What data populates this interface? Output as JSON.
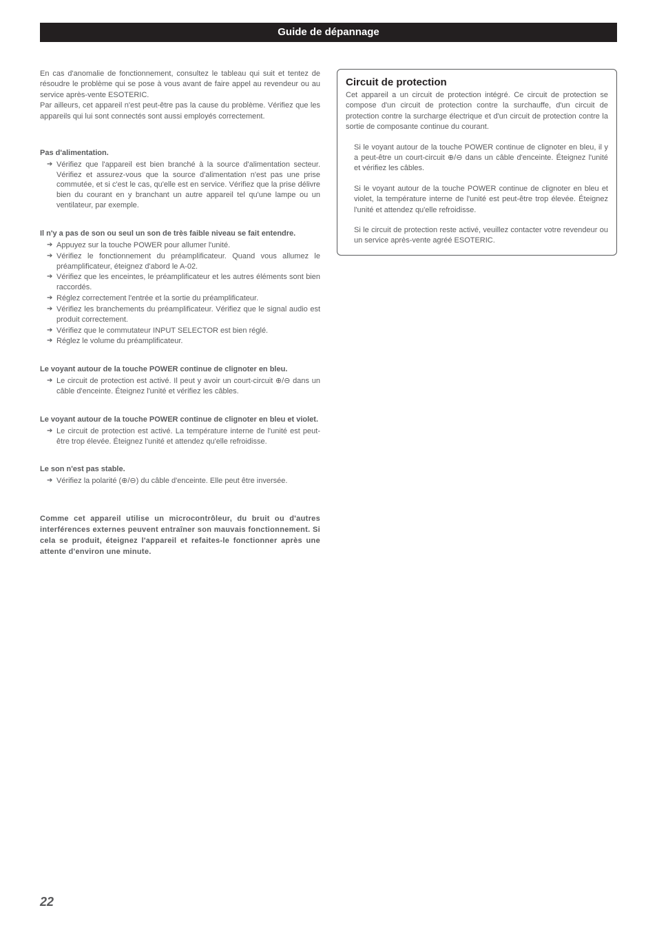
{
  "header": {
    "title": "Guide de dépannage"
  },
  "left": {
    "intro": "En cas d'anomalie de fonctionnement, consultez le tableau qui suit et tentez de résoudre le problème qui se pose à vous avant de faire appel au revendeur ou au service après-vente ESOTERIC.\nPar ailleurs, cet appareil n'est peut-être pas la cause du problème. Vérifiez que les appareils qui lui sont connectés sont aussi employés correctement.",
    "sections": [
      {
        "heading": "Pas d'alimentation.",
        "items": [
          "Vérifiez que l'appareil est bien branché à la source d'alimentation secteur. Vérifiez et assurez-vous que la source d'alimentation n'est pas une prise commutée, et si c'est le cas, qu'elle est en service. Vérifiez que la prise délivre bien du courant en y branchant un autre appareil tel qu'une lampe ou un ventilateur, par exemple."
        ]
      },
      {
        "heading": "Il n'y a pas de son ou seul un son de très faible niveau se fait entendre.",
        "items": [
          "Appuyez sur la touche POWER pour allumer l'unité.",
          "Vérifiez le fonctionnement du préamplificateur. Quand vous allumez le préamplificateur, éteignez d'abord le A-02.",
          "Vérifiez que les enceintes, le préamplificateur et les autres éléments sont bien raccordés.",
          "Réglez correctement l'entrée et la sortie du préamplificateur.",
          "Vérifiez les branchements du préamplificateur. Vérifiez que le signal audio est produit correctement.",
          "Vérifiez que le commutateur INPUT SELECTOR est bien réglé.",
          "Réglez le volume du préamplificateur."
        ]
      },
      {
        "heading": "Le voyant autour de la touche POWER continue de clignoter en bleu.",
        "items": [
          "Le circuit de protection est activé. Il peut y avoir un court-circuit ⊕/⊖ dans un câble d'enceinte. Éteignez l'unité et vérifiez les câbles."
        ]
      },
      {
        "heading": "Le voyant autour de la touche POWER continue de clignoter en bleu et violet.",
        "items": [
          "Le circuit de protection est activé. La température interne de l'unité est peut-être trop élevée. Éteignez l'unité et attendez qu'elle refroidisse."
        ]
      },
      {
        "heading": "Le son n'est pas stable.",
        "items": [
          "Vérifiez la polarité (⊕/⊖) du câble d'enceinte. Elle peut être inversée."
        ]
      }
    ],
    "bold_note": "Comme cet appareil utilise un microcontrôleur, du bruit ou d'autres interférences externes peuvent entraîner son mauvais fonctionnement. Si cela se produit, éteignez l'appareil et refaites-le fonctionner après une attente d'environ une minute."
  },
  "right": {
    "box_title": "Circuit de protection",
    "box_intro": "Cet appareil a un circuit de protection intégré. Ce circuit de protection se compose d'un circuit de protection contre la surchauffe, d'un circuit de protection contre la surcharge électrique et d'un circuit de protection contre la sortie de composante continue du courant.",
    "box_paras": [
      "Si le voyant autour de la touche POWER continue de clignoter en bleu, il y a peut-être un court-circuit ⊕/⊖ dans un câble d'enceinte. Éteignez l'unité et vérifiez les câbles.",
      "Si le voyant autour de la touche POWER continue de clignoter en bleu et violet, la température interne de l'unité est peut-être trop élevée. Éteignez l'unité et attendez qu'elle refroidisse.",
      "Si le circuit de protection reste activé, veuillez contacter votre revendeur ou un service après-vente agréé ESOTERIC."
    ]
  },
  "page_number": "22",
  "colors": {
    "text": "#595a5c",
    "header_bg": "#231f20",
    "header_text": "#ffffff",
    "background": "#ffffff"
  },
  "typography": {
    "body_fontsize": 11,
    "header_fontsize": 15,
    "box_title_fontsize": 15,
    "page_num_fontsize": 18
  }
}
